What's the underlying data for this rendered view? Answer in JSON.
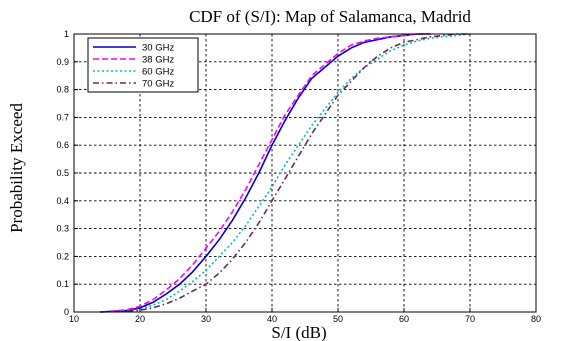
{
  "chart_data": {
    "type": "line",
    "title": "CDF of  (S/I): Map of  Salamanca, Madrid",
    "xlabel": "S/I (dB)",
    "ylabel": "Probability Exceed",
    "xlim": [
      10,
      80
    ],
    "ylim": [
      0,
      1
    ],
    "xticks": [
      "10",
      "20",
      "30",
      "40",
      "50",
      "60",
      "70",
      "80"
    ],
    "yticks": [
      "0",
      "0.1",
      "0.2",
      "0.3",
      "0.4",
      "0.5",
      "0.6",
      "0.7",
      "0.8",
      "0.9",
      "1"
    ],
    "grid": true,
    "legend_position": "top-left",
    "series": [
      {
        "name": "30 GHz",
        "color": "#0000cc",
        "dash": "solid",
        "x": [
          14,
          18,
          20,
          22,
          24,
          26,
          28,
          30,
          32,
          34,
          36,
          38,
          40,
          42,
          44,
          46,
          48,
          50,
          52,
          54,
          56,
          58,
          60,
          62,
          64
        ],
        "y": [
          0,
          0.005,
          0.015,
          0.035,
          0.065,
          0.1,
          0.145,
          0.2,
          0.26,
          0.33,
          0.41,
          0.5,
          0.6,
          0.69,
          0.77,
          0.84,
          0.88,
          0.92,
          0.95,
          0.97,
          0.98,
          0.99,
          0.995,
          1,
          1
        ]
      },
      {
        "name": "38 GHz",
        "color": "#ff00ff",
        "dash": "dashed",
        "x": [
          14,
          18,
          20,
          22,
          24,
          26,
          28,
          30,
          32,
          34,
          36,
          38,
          40,
          42,
          44,
          46,
          48,
          50,
          52,
          54,
          56,
          58,
          60,
          62,
          64
        ],
        "y": [
          0,
          0.008,
          0.02,
          0.045,
          0.08,
          0.12,
          0.17,
          0.23,
          0.29,
          0.36,
          0.44,
          0.53,
          0.62,
          0.71,
          0.78,
          0.85,
          0.89,
          0.93,
          0.96,
          0.975,
          0.985,
          0.99,
          0.995,
          1,
          1
        ]
      },
      {
        "name": "60 GHz",
        "color": "#00bbbb",
        "dash": "dotted",
        "x": [
          14,
          18,
          20,
          22,
          24,
          26,
          28,
          30,
          32,
          34,
          36,
          38,
          40,
          42,
          44,
          46,
          48,
          50,
          52,
          54,
          56,
          58,
          60,
          62,
          64,
          66,
          68,
          70
        ],
        "y": [
          0,
          0.003,
          0.01,
          0.025,
          0.045,
          0.075,
          0.11,
          0.15,
          0.2,
          0.25,
          0.31,
          0.38,
          0.45,
          0.53,
          0.6,
          0.67,
          0.73,
          0.79,
          0.84,
          0.88,
          0.91,
          0.94,
          0.96,
          0.975,
          0.985,
          0.99,
          0.995,
          1
        ]
      },
      {
        "name": "70 GHz",
        "color": "#6b2a5e",
        "dash": "dashdot",
        "x": [
          14,
          18,
          20,
          22,
          24,
          26,
          28,
          30,
          32,
          34,
          36,
          38,
          40,
          42,
          44,
          46,
          48,
          50,
          52,
          54,
          56,
          58,
          60,
          62,
          64,
          66,
          68,
          70
        ],
        "y": [
          0,
          0.002,
          0.006,
          0.015,
          0.03,
          0.05,
          0.075,
          0.1,
          0.14,
          0.19,
          0.25,
          0.32,
          0.4,
          0.48,
          0.56,
          0.64,
          0.71,
          0.78,
          0.83,
          0.88,
          0.92,
          0.95,
          0.97,
          0.98,
          0.99,
          0.995,
          1,
          1
        ]
      }
    ]
  }
}
